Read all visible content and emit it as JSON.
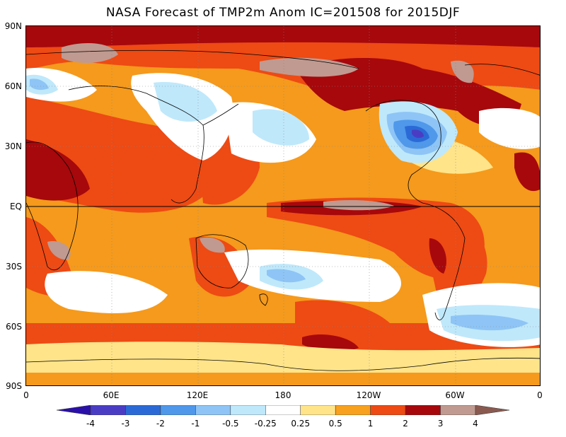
{
  "title": "NASA Forecast of TMP2m Anom  IC=201508 for 2015DJF",
  "map": {
    "projection": "global lat-lon (Pacific-centered)",
    "overlay": "coastlines",
    "equator_line": true,
    "latitude_labels": [
      "90N",
      "60N",
      "30N",
      "EQ",
      "30S",
      "60S",
      "90S"
    ],
    "longitude_labels": [
      "0",
      "60E",
      "120E",
      "180",
      "120W",
      "60W",
      "0"
    ]
  },
  "colorbar": {
    "tick_labels": [
      "-4",
      "-3",
      "-2",
      "-1",
      "-0.5",
      "-0.25",
      "0.25",
      "0.5",
      "1",
      "2",
      "3",
      "4"
    ],
    "colors": [
      "#2a10a8",
      "#4a3dc4",
      "#2b6ad6",
      "#4f98ea",
      "#8ec5f6",
      "#bfe8fb",
      "#ffffff",
      "#ffe48a",
      "#f8a11e",
      "#ee4a14",
      "#a6080c",
      "#c09a90",
      "#8a5a50"
    ]
  }
}
